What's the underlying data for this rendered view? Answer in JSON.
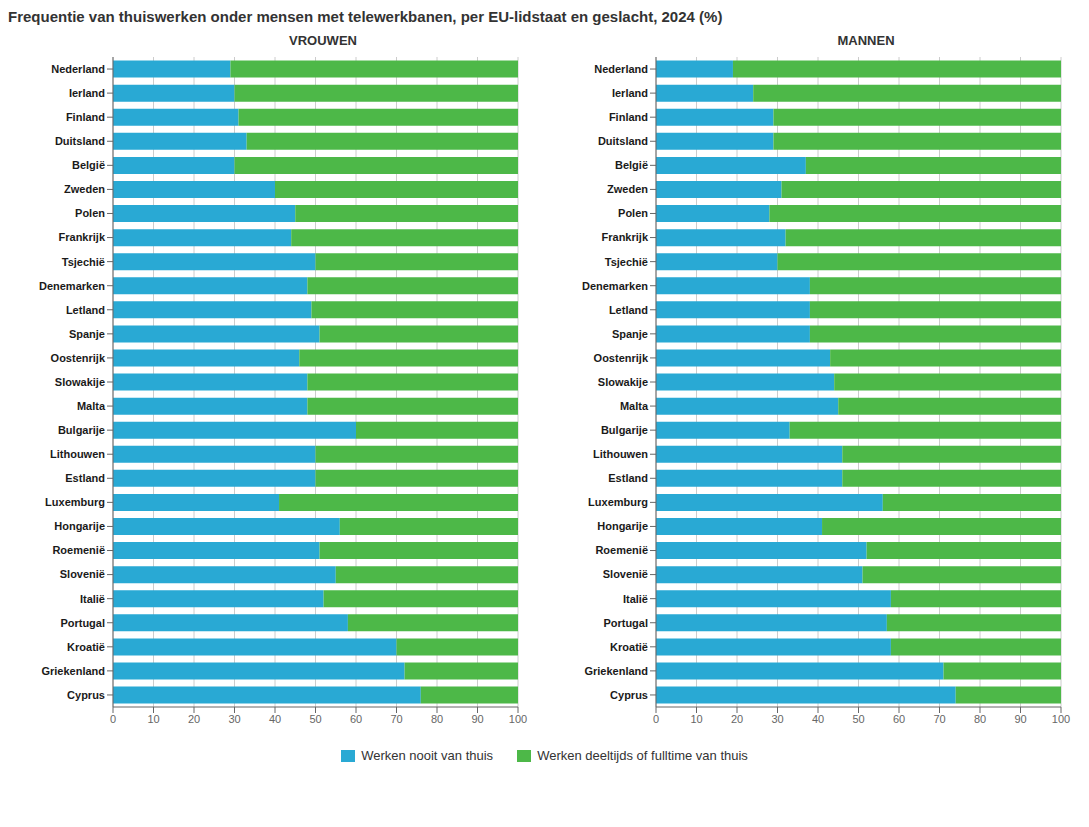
{
  "title": "Frequentie van thuiswerken onder mensen met telewerkbanen, per EU-lidstaat en geslacht, 2024 (%)",
  "legend": "bottom",
  "chart_data": [
    {
      "type": "bar",
      "orientation": "horizontal",
      "stacked": true,
      "grid": true,
      "title": "VROUWEN",
      "categories": [
        "Nederland",
        "Ierland",
        "Finland",
        "Duitsland",
        "België",
        "Zweden",
        "Polen",
        "Frankrijk",
        "Tsjechië",
        "Denemarken",
        "Letland",
        "Spanje",
        "Oostenrijk",
        "Slowakije",
        "Malta",
        "Bulgarije",
        "Lithouwen",
        "Estland",
        "Luxemburg",
        "Hongarije",
        "Roemenië",
        "Slovenië",
        "Italië",
        "Portugal",
        "Kroatië",
        "Griekenland",
        "Cyprus"
      ],
      "series": [
        {
          "name": "Werken nooit van thuis",
          "color": "#29a9d4",
          "values": [
            29,
            30,
            31,
            33,
            30,
            40,
            45,
            44,
            50,
            48,
            49,
            51,
            46,
            48,
            48,
            60,
            50,
            50,
            41,
            56,
            51,
            55,
            52,
            58,
            70,
            72,
            76
          ]
        },
        {
          "name": "Werken deeltijds of fulltime van thuis",
          "color": "#4db848",
          "values": [
            71,
            70,
            69,
            67,
            70,
            60,
            55,
            56,
            50,
            52,
            51,
            49,
            54,
            52,
            52,
            40,
            50,
            50,
            59,
            44,
            49,
            45,
            48,
            42,
            30,
            28,
            24
          ]
        }
      ],
      "xlim": [
        0,
        100
      ],
      "xticks": [
        0,
        10,
        20,
        30,
        40,
        50,
        60,
        70,
        80,
        90,
        100
      ]
    },
    {
      "type": "bar",
      "orientation": "horizontal",
      "stacked": true,
      "grid": true,
      "title": "MANNEN",
      "categories": [
        "Nederland",
        "Ierland",
        "Finland",
        "Duitsland",
        "België",
        "Zweden",
        "Polen",
        "Frankrijk",
        "Tsjechië",
        "Denemarken",
        "Letland",
        "Spanje",
        "Oostenrijk",
        "Slowakije",
        "Malta",
        "Bulgarije",
        "Lithouwen",
        "Estland",
        "Luxemburg",
        "Hongarije",
        "Roemenië",
        "Slovenië",
        "Italië",
        "Portugal",
        "Kroatië",
        "Griekenland",
        "Cyprus"
      ],
      "series": [
        {
          "name": "Werken nooit van thuis",
          "color": "#29a9d4",
          "values": [
            19,
            24,
            29,
            29,
            37,
            31,
            28,
            32,
            30,
            38,
            38,
            38,
            43,
            44,
            45,
            33,
            46,
            46,
            56,
            41,
            52,
            51,
            58,
            57,
            58,
            71,
            74
          ]
        },
        {
          "name": "Werken deeltijds of fulltime van thuis",
          "color": "#4db848",
          "values": [
            81,
            76,
            71,
            71,
            63,
            69,
            72,
            68,
            70,
            62,
            62,
            62,
            57,
            56,
            55,
            67,
            54,
            54,
            44,
            59,
            48,
            49,
            42,
            43,
            42,
            29,
            26
          ]
        }
      ],
      "xlim": [
        0,
        100
      ],
      "xticks": [
        0,
        10,
        20,
        30,
        40,
        50,
        60,
        70,
        80,
        90,
        100
      ]
    }
  ]
}
